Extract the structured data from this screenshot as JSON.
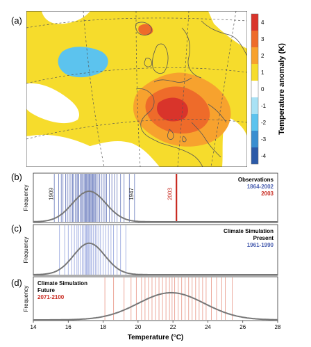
{
  "colors": {
    "observations": "#4a5fb0",
    "present": "#6b7fd0",
    "future": "#e0705a",
    "year2003": "#c8281e",
    "curve": "#777777",
    "land": "#f6dc2c",
    "ocean_blue": "#5cc3ee"
  },
  "panel_map": {
    "label": "(a)",
    "colorbar": {
      "title": "Temperature anomaly (K)",
      "ticks": [
        "4",
        "3",
        "2",
        "1",
        "0",
        "-1",
        "-2",
        "-3",
        "-4"
      ],
      "colors": [
        "#d9342b",
        "#ee6b2a",
        "#f7a22e",
        "#f6dc2c",
        "#ffffff",
        "#a9e2f5",
        "#5cc3ee",
        "#3a8ed0",
        "#2c5aa8"
      ]
    }
  },
  "chart_data": [
    {
      "type": "histogram",
      "panel": "(b)",
      "ylabel": "Frequency",
      "legend": {
        "title": "Observations",
        "period": "1864-2002",
        "highlight": "2003"
      },
      "annotations": [
        "1909",
        "1947",
        "2003"
      ],
      "yearly_values": [
        15.2,
        15.45,
        15.6,
        15.7,
        15.85,
        15.95,
        16.05,
        16.15,
        16.25,
        16.3,
        16.4,
        16.5,
        16.55,
        16.6,
        16.7,
        16.75,
        16.8,
        16.9,
        16.95,
        17.0,
        17.05,
        17.1,
        17.15,
        17.2,
        17.25,
        17.3,
        17.35,
        17.4,
        17.45,
        17.5,
        17.55,
        17.6,
        17.7,
        17.8,
        17.9,
        18.0,
        18.1,
        18.2,
        18.35,
        18.5,
        18.65,
        18.8,
        19.0,
        19.2,
        19.5,
        19.8
      ],
      "highlight_value": 22.2,
      "curve": {
        "mean": 17.2,
        "sd": 0.95
      }
    },
    {
      "type": "histogram",
      "panel": "(c)",
      "ylabel": "Frequency",
      "legend": {
        "title": "Climate Simulation",
        "subtitle": "Present",
        "period": "1961-1990"
      },
      "yearly_values": [
        15.5,
        15.8,
        16.0,
        16.2,
        16.35,
        16.5,
        16.6,
        16.7,
        16.8,
        16.9,
        17.0,
        17.05,
        17.1,
        17.15,
        17.2,
        17.3,
        17.35,
        17.45,
        17.55,
        17.65,
        17.75,
        17.85,
        18.0,
        18.15,
        18.3,
        18.45,
        18.6,
        18.8,
        19.0,
        19.3
      ],
      "curve": {
        "mean": 17.2,
        "sd": 0.9
      }
    },
    {
      "type": "histogram",
      "panel": "(d)",
      "ylabel": "Frequency",
      "legend": {
        "title": "Climate Simulation",
        "subtitle": "Future",
        "period": "2071-2100"
      },
      "yearly_values": [
        18.1,
        18.6,
        19.2,
        19.6,
        19.9,
        20.2,
        20.4,
        20.6,
        20.8,
        21.0,
        21.2,
        21.4,
        21.6,
        21.8,
        21.95,
        22.1,
        22.3,
        22.5,
        22.7,
        22.9,
        23.1,
        23.3,
        23.5,
        23.7,
        23.9,
        24.2,
        24.5,
        24.8,
        25.0,
        25.4
      ],
      "curve": {
        "mean": 21.9,
        "sd": 1.9
      }
    }
  ],
  "x_axis": {
    "label": "Temperature (°C)",
    "range": [
      14,
      28
    ],
    "ticks": [
      14,
      16,
      18,
      20,
      22,
      24,
      26,
      28
    ]
  }
}
